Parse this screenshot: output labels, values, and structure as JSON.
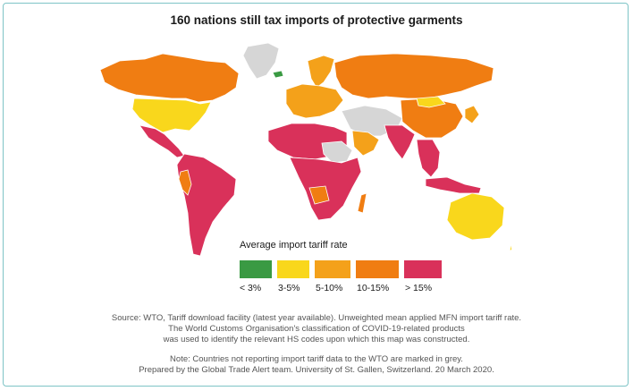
{
  "title": "160 nations still tax imports of protective garments",
  "legend": {
    "title": "Average import tariff rate",
    "items": [
      {
        "label": "< 3%",
        "color": "#3a9a43"
      },
      {
        "label": "3-5%",
        "color": "#f9d71c"
      },
      {
        "label": "5-10%",
        "color": "#f4a11a"
      },
      {
        "label": "10-15%",
        "color": "#f07d12"
      },
      {
        "label": "> 15%",
        "color": "#d9315a"
      }
    ]
  },
  "no_data_color": "#d6d6d6",
  "source_lines": [
    "Source: WTO, Tariff download facility (latest year available). Unweighted mean applied MFN import tariff rate.",
    "The World Customs Organisation's classification of COVID-19-related products",
    "was used to identify the relevant HS codes upon which this map was constructed."
  ],
  "note_lines": [
    "Note: Countries not reporting import tariff data to the WTO are marked in grey.",
    "Prepared by the Global Trade Alert team. University of St. Gallen, Switzerland. 20 March 2020."
  ]
}
